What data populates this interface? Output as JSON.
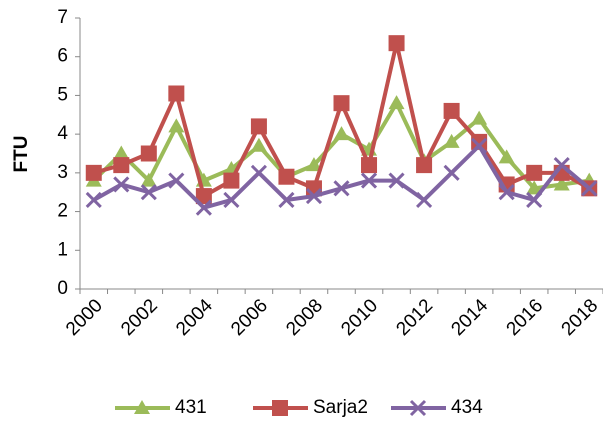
{
  "chart_data": {
    "type": "line",
    "ylabel": "FTU",
    "categories": [
      "2000",
      null,
      "2002",
      null,
      "2004",
      null,
      "2006",
      null,
      "2008",
      null,
      "2010",
      null,
      "2012",
      null,
      "2014",
      null,
      "2016",
      null,
      "2018"
    ],
    "series": [
      {
        "name": "431",
        "color": "#9bbb59",
        "marker": "triangle",
        "values": [
          2.8,
          3.5,
          2.8,
          4.2,
          2.8,
          3.1,
          3.7,
          2.9,
          3.2,
          4.0,
          3.6,
          4.8,
          3.3,
          3.8,
          4.4,
          3.4,
          2.6,
          2.7,
          2.8
        ]
      },
      {
        "name": "Sarja2",
        "color": "#c0504d",
        "marker": "square",
        "values": [
          3.0,
          3.2,
          3.5,
          5.05,
          2.4,
          2.8,
          4.2,
          2.9,
          2.6,
          4.8,
          3.2,
          6.35,
          3.2,
          4.6,
          3.8,
          2.7,
          3.0,
          3.0,
          2.6
        ]
      },
      {
        "name": "434",
        "color": "#8064a2",
        "marker": "x",
        "values": [
          2.3,
          2.7,
          2.5,
          2.8,
          2.1,
          2.3,
          3.0,
          2.3,
          2.4,
          2.6,
          2.8,
          2.8,
          2.3,
          3.0,
          3.7,
          2.5,
          2.3,
          3.2,
          2.6
        ]
      }
    ],
    "ylim": [
      0,
      7
    ],
    "yticks": [
      0,
      1,
      2,
      3,
      4,
      5,
      6,
      7
    ],
    "grid": false,
    "legend": "bottom"
  }
}
